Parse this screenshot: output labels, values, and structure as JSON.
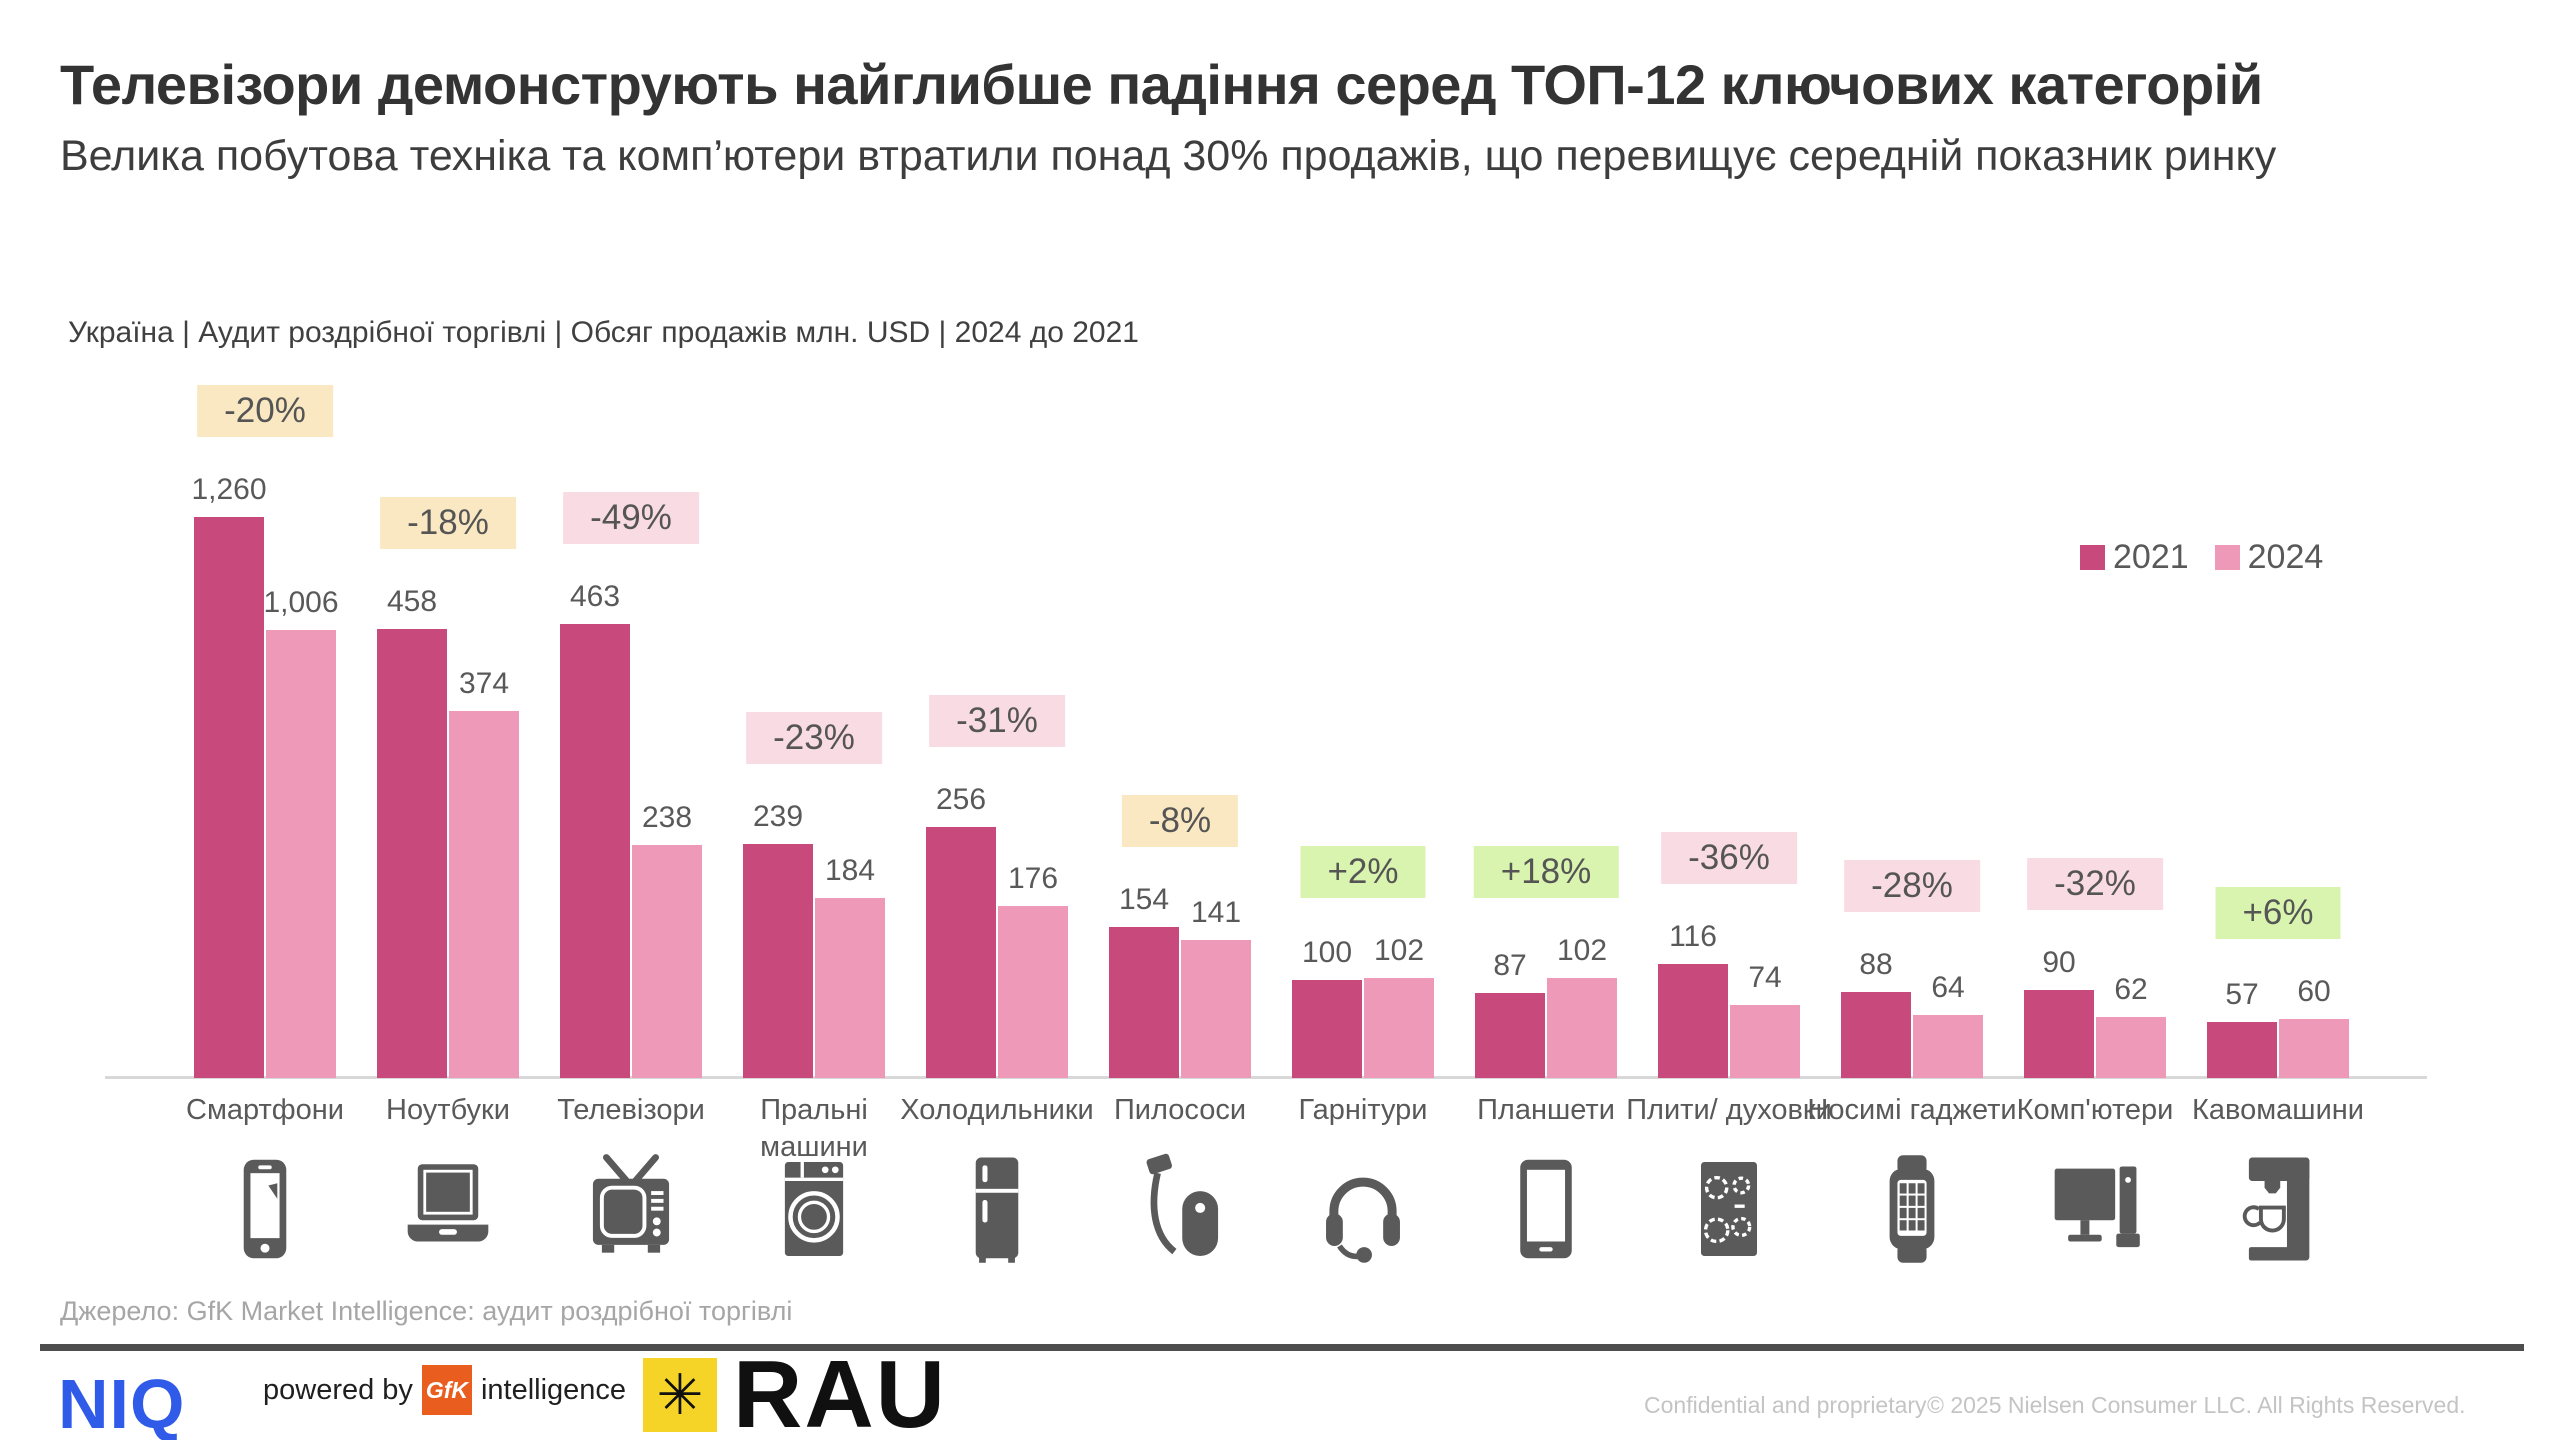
{
  "slide": {
    "title": "Телевізори демонструють найглибше падіння серед ТОП-12 ключових категорій",
    "subtitle": "Велика побутова техніка та комп’ютери втратили понад 30% продажів, що перевищує середній показник ринку",
    "context_line": "Україна | Аудит роздрібної торгівлі | Обсяг продажів млн. USD | 2024 до 2021",
    "source": "Джерело: GfK Market Intelligence: аудит роздрібної торгівлі"
  },
  "legend": {
    "position": "right",
    "series": [
      {
        "label": "2021",
        "color": "#c8497b"
      },
      {
        "label": "2024",
        "color": "#ef99b8"
      }
    ]
  },
  "chart_data": {
    "type": "bar",
    "title": "Обсяг продажів млн. USD, 2024 до 2021",
    "unit": "млн. USD",
    "series_names": [
      "2021",
      "2024"
    ],
    "ylim": [
      0,
      1300
    ],
    "grid": false,
    "legend_position": "top-right",
    "categories": [
      {
        "label": "Смартфони",
        "icon": "smartphone-icon",
        "values": [
          1260,
          1006
        ],
        "display": [
          "1,260",
          "1,006"
        ],
        "change": "-20%",
        "badge": "cream"
      },
      {
        "label": "Ноутбуки",
        "icon": "laptop-icon",
        "values": [
          458,
          374
        ],
        "display": [
          "458",
          "374"
        ],
        "change": "-18%",
        "badge": "cream"
      },
      {
        "label": "Телевізори",
        "icon": "tv-icon",
        "values": [
          463,
          238
        ],
        "display": [
          "463",
          "238"
        ],
        "change": "-49%",
        "badge": "pink"
      },
      {
        "label": "Пральні\nмашини",
        "icon": "washer-icon",
        "values": [
          239,
          184
        ],
        "display": [
          "239",
          "184"
        ],
        "change": "-23%",
        "badge": "pink"
      },
      {
        "label": "Холодильники",
        "icon": "fridge-icon",
        "values": [
          256,
          176
        ],
        "display": [
          "256",
          "176"
        ],
        "change": "-31%",
        "badge": "pink"
      },
      {
        "label": "Пилососи",
        "icon": "vacuum-icon",
        "values": [
          154,
          141
        ],
        "display": [
          "154",
          "141"
        ],
        "change": "-8%",
        "badge": "cream"
      },
      {
        "label": "Гарнітури",
        "icon": "headset-icon",
        "values": [
          100,
          102
        ],
        "display": [
          "100",
          "102"
        ],
        "change": "+2%",
        "badge": "green"
      },
      {
        "label": "Планшети",
        "icon": "tablet-icon",
        "values": [
          87,
          102
        ],
        "display": [
          "87",
          "102"
        ],
        "change": "+18%",
        "badge": "green"
      },
      {
        "label": "Плити/ духовки",
        "icon": "cooktop-icon",
        "values": [
          116,
          74
        ],
        "display": [
          "116",
          "74"
        ],
        "change": "-36%",
        "badge": "pink"
      },
      {
        "label": "Носимі гаджети",
        "icon": "smartwatch-icon",
        "values": [
          88,
          64
        ],
        "display": [
          "88",
          "64"
        ],
        "change": "-28%",
        "badge": "pink"
      },
      {
        "label": "Комп'ютери",
        "icon": "desktop-icon",
        "values": [
          90,
          62
        ],
        "display": [
          "90",
          "62"
        ],
        "change": "-32%",
        "badge": "pink"
      },
      {
        "label": "Кавомашини",
        "icon": "coffee-machine-icon",
        "values": [
          57,
          60
        ],
        "display": [
          "57",
          "60"
        ],
        "change": "+6%",
        "badge": "green"
      }
    ]
  },
  "colors": {
    "bar_2021": "#c8497b",
    "bar_2024": "#ef99b8",
    "badge_cream": "#fae8c3",
    "badge_pink": "#f9dbe4",
    "badge_green": "#d9f4ae",
    "badge_text": "#555555",
    "text_gray": "#595959",
    "axis": "#d8d8d8"
  },
  "footer": {
    "niq": "NIQ",
    "powered_by": "powered by",
    "gfk": "GfK",
    "intelligence": "intelligence",
    "rau_star": "✳",
    "rau": "RAU",
    "confidential": "Confidential and proprietary",
    "copyright": "© 2025 Nielsen Consumer LLC. All Rights Reserved."
  }
}
